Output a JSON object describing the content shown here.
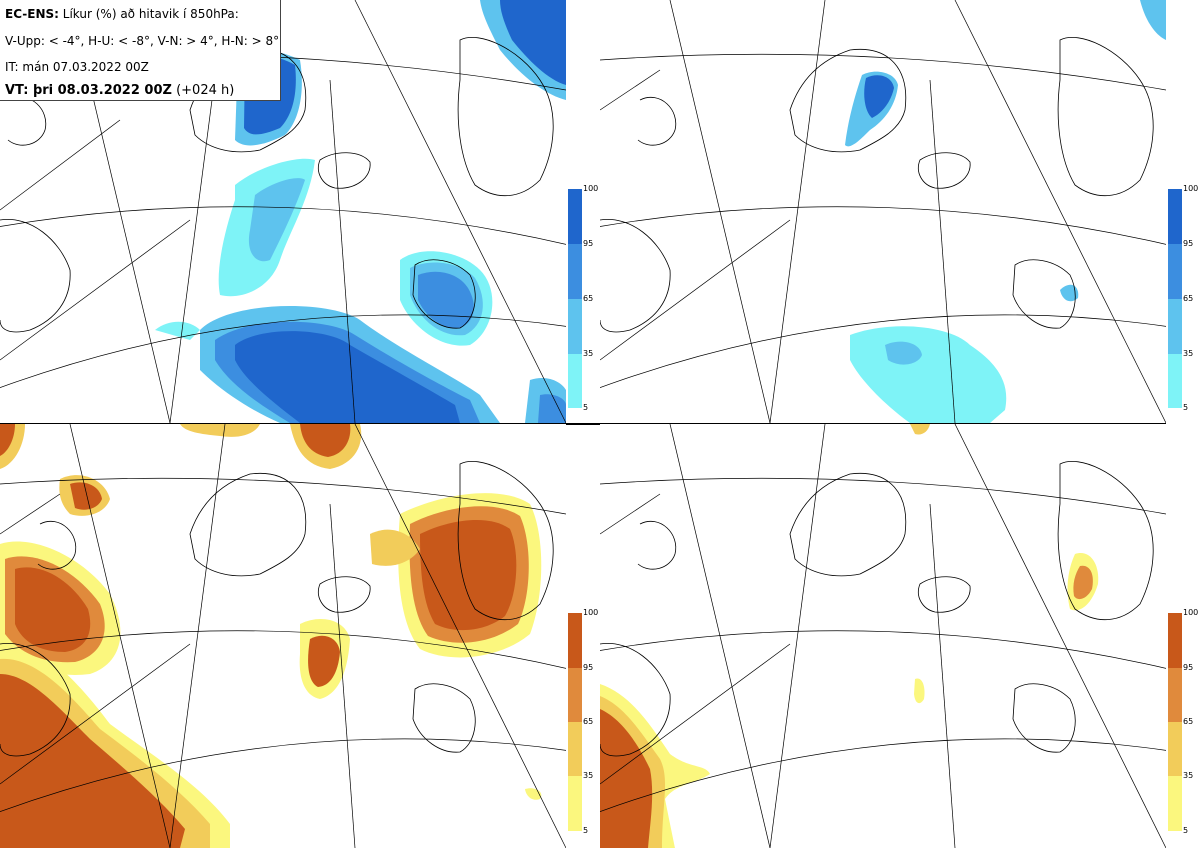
{
  "header": {
    "model": "EC-ENS:",
    "title": "Líkur (%) að hitavik í 850hPa:",
    "legend_line": "V-Upp: < -4°, H-U: < -8°, V-N: > 4°, H-N: > 8°",
    "init_time": "IT: mán 07.03.2022 00Z",
    "valid_prefix": "VT: þri 08.03.2022 00Z",
    "valid_suffix": "(+024 h)"
  },
  "panels": [
    {
      "id": "V-Upp",
      "threshold": "< -4°",
      "palette": "blue"
    },
    {
      "id": "H-U",
      "threshold": "< -8°",
      "palette": "blue"
    },
    {
      "id": "V-N",
      "threshold": "> 4°",
      "palette": "orange"
    },
    {
      "id": "H-N",
      "threshold": "> 8°",
      "palette": "orange"
    }
  ],
  "colorbar": {
    "ticks": [
      "100",
      "95",
      "65",
      "35",
      "5"
    ],
    "blue_colors": [
      "#1f66cc",
      "#3c8ee0",
      "#5ec3ee",
      "#7ef3f7"
    ],
    "orange_colors": [
      "#c8581a",
      "#e08a3c",
      "#f2cc5a",
      "#fbf77e"
    ]
  }
}
